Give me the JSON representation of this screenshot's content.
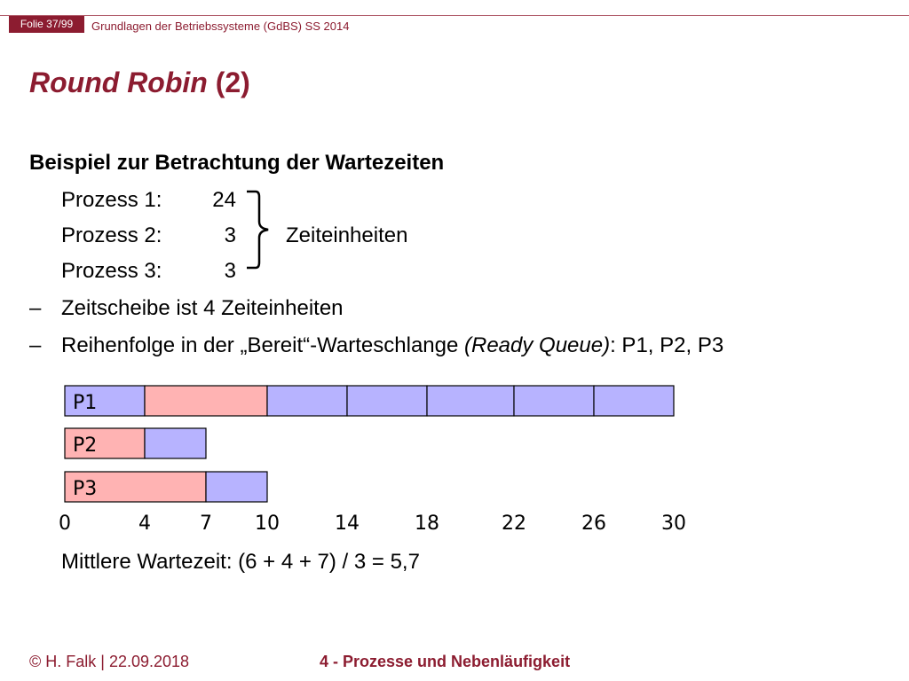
{
  "header": {
    "slide_number": "Folie 37/99",
    "course": "Grundlagen der Betriebssysteme (GdBS) SS 2014"
  },
  "title": {
    "italic_part": "Round Robin",
    "rest": " (2)"
  },
  "content": {
    "heading": "Beispiel zur Betrachtung der Wartezeiten",
    "processes": [
      {
        "label": "Prozess 1:",
        "value": "24"
      },
      {
        "label": "Prozess 2:",
        "value": "3"
      },
      {
        "label": "Prozess 3:",
        "value": "3"
      }
    ],
    "unit_label": "Zeiteinheiten",
    "bullets": [
      {
        "dash": "–",
        "text": "Zeitscheibe ist 4 Zeiteinheiten"
      },
      {
        "dash": "–",
        "pre": "Reihenfolge in der „Bereit“-Warteschlange ",
        "italic": "(Ready Queue)",
        "post": ": P1, P2, P3"
      }
    ],
    "result": "Mittlere Wartezeit: (6 + 4 + 7) / 3 = 5,7"
  },
  "chart_data": {
    "type": "gantt",
    "time_axis_labels": [
      "0",
      "4",
      "7",
      "10",
      "14",
      "18",
      "22",
      "26",
      "30"
    ],
    "time_axis_values": [
      0,
      4,
      7,
      10,
      14,
      18,
      22,
      26,
      30
    ],
    "colors": {
      "waiting": "#ffb3b3",
      "running": "#b7b3ff",
      "border": "#000000"
    },
    "rows": [
      {
        "name": "P1",
        "segments": [
          {
            "start": 0,
            "end": 4,
            "state": "running"
          },
          {
            "start": 4,
            "end": 10,
            "state": "waiting"
          },
          {
            "start": 10,
            "end": 14,
            "state": "running"
          },
          {
            "start": 14,
            "end": 18,
            "state": "running"
          },
          {
            "start": 18,
            "end": 22,
            "state": "running"
          },
          {
            "start": 22,
            "end": 26,
            "state": "running"
          },
          {
            "start": 26,
            "end": 30,
            "state": "running"
          }
        ]
      },
      {
        "name": "P2",
        "segments": [
          {
            "start": 0,
            "end": 4,
            "state": "waiting"
          },
          {
            "start": 4,
            "end": 7,
            "state": "running"
          }
        ]
      },
      {
        "name": "P3",
        "segments": [
          {
            "start": 0,
            "end": 7,
            "state": "waiting"
          },
          {
            "start": 7,
            "end": 10,
            "state": "running"
          }
        ]
      }
    ]
  },
  "footer": {
    "author": "© H. Falk | 22.09.2018",
    "chapter": "4 - Prozesse und Nebenläufigkeit"
  }
}
